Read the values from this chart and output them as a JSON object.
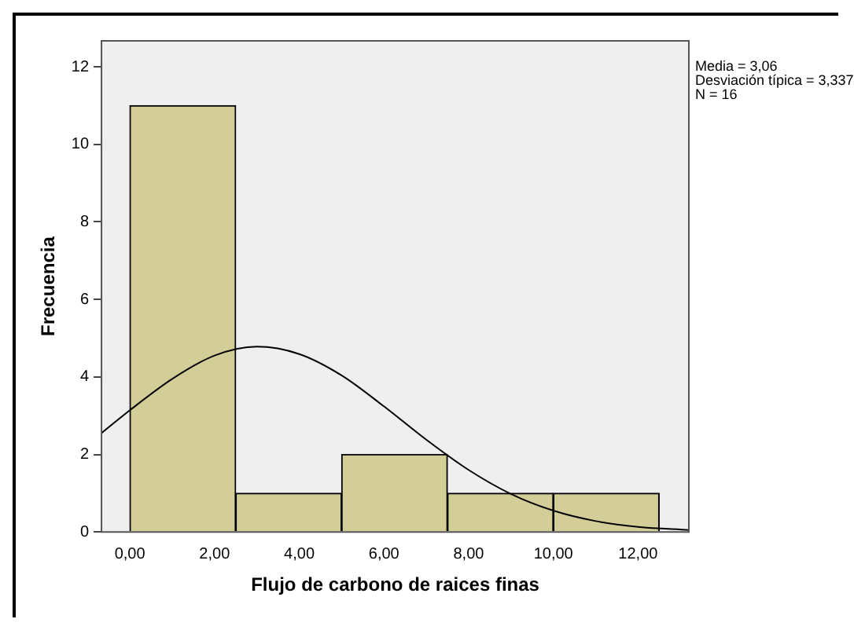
{
  "chart_data": {
    "type": "histogram",
    "xlabel": "Flujo de carbono de raices finas",
    "ylabel": "Frecuencia",
    "bins": [
      0,
      2.5,
      5,
      7.5,
      10,
      12.5
    ],
    "values": [
      11,
      1,
      2,
      1,
      1
    ],
    "color": "#d3ce97",
    "series": [
      {
        "type": "line",
        "color": "#000000",
        "x": [
          -0.67,
          0,
          1,
          2,
          3,
          4,
          5,
          6,
          7,
          8,
          9,
          10,
          11,
          12,
          13.2
        ],
        "values": [
          2.55,
          3.14,
          3.95,
          4.55,
          4.78,
          4.59,
          4.04,
          3.24,
          2.38,
          1.6,
          0.98,
          0.55,
          0.28,
          0.13,
          0.05
        ]
      }
    ],
    "xlim": [
      -0.67,
      13.2
    ],
    "xticks": [
      {
        "value": 0,
        "label": "0,00"
      },
      {
        "value": 2,
        "label": "2,00"
      },
      {
        "value": 4,
        "label": "4,00"
      },
      {
        "value": 6,
        "label": "6,00"
      },
      {
        "value": 8,
        "label": "8,00"
      },
      {
        "value": 10,
        "label": "10,00"
      },
      {
        "value": 12,
        "label": "12,00"
      }
    ],
    "ylim": [
      0,
      12.67
    ],
    "yticks": [
      0,
      2,
      4,
      6,
      8,
      10,
      12
    ],
    "annotations": [
      "Media = 3,06",
      "Desviación típica = 3,337",
      "N = 16"
    ],
    "grid": false,
    "legend": false,
    "marker": "none"
  }
}
